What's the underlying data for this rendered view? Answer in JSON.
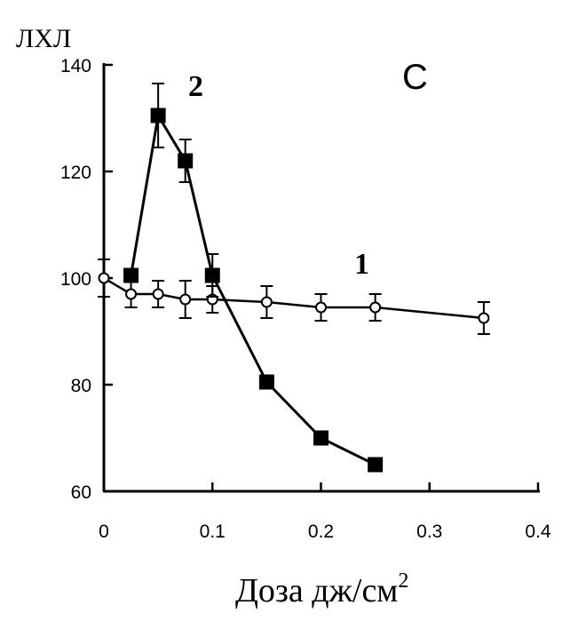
{
  "chart_data": {
    "type": "line",
    "panel_label": "С",
    "ylabel": "ЛХЛ",
    "xlabel": "Доза  дж/см",
    "xlabel_superscript": "2",
    "xlim": [
      0,
      0.4
    ],
    "ylim": [
      60,
      140
    ],
    "x_ticks": [
      0,
      0.1,
      0.2,
      0.3,
      0.4
    ],
    "x_tick_labels": [
      "0",
      "0.1",
      "0.2",
      "0.3",
      "0.4"
    ],
    "y_ticks": [
      60,
      80,
      100,
      120,
      140
    ],
    "y_tick_labels": [
      "60",
      "80",
      "100",
      "120",
      "140"
    ],
    "grid": false,
    "series": [
      {
        "name": "1",
        "marker": "open-circle",
        "color": "#000000",
        "points": [
          {
            "x": 0.0,
            "y": 100,
            "err": 3.5
          },
          {
            "x": 0.025,
            "y": 97,
            "err": 2.5
          },
          {
            "x": 0.05,
            "y": 97,
            "err": 2.5
          },
          {
            "x": 0.075,
            "y": 96,
            "err": 3.5
          },
          {
            "x": 0.1,
            "y": 96,
            "err": 2.5
          },
          {
            "x": 0.15,
            "y": 95.5,
            "err": 3.0
          },
          {
            "x": 0.2,
            "y": 94.5,
            "err": 2.5
          },
          {
            "x": 0.25,
            "y": 94.5,
            "err": 2.5
          },
          {
            "x": 0.35,
            "y": 92.5,
            "err": 3.0
          }
        ]
      },
      {
        "name": "2",
        "marker": "filled-square",
        "color": "#000000",
        "points": [
          {
            "x": 0.025,
            "y": 100.5,
            "err": null
          },
          {
            "x": 0.05,
            "y": 130.5,
            "err": 6.0
          },
          {
            "x": 0.075,
            "y": 122,
            "err": 4.0
          },
          {
            "x": 0.1,
            "y": 100.5,
            "err": 4.0
          },
          {
            "x": 0.15,
            "y": 80.5,
            "err": null
          },
          {
            "x": 0.2,
            "y": 70,
            "err": null
          },
          {
            "x": 0.25,
            "y": 65,
            "err": null
          }
        ]
      }
    ]
  }
}
